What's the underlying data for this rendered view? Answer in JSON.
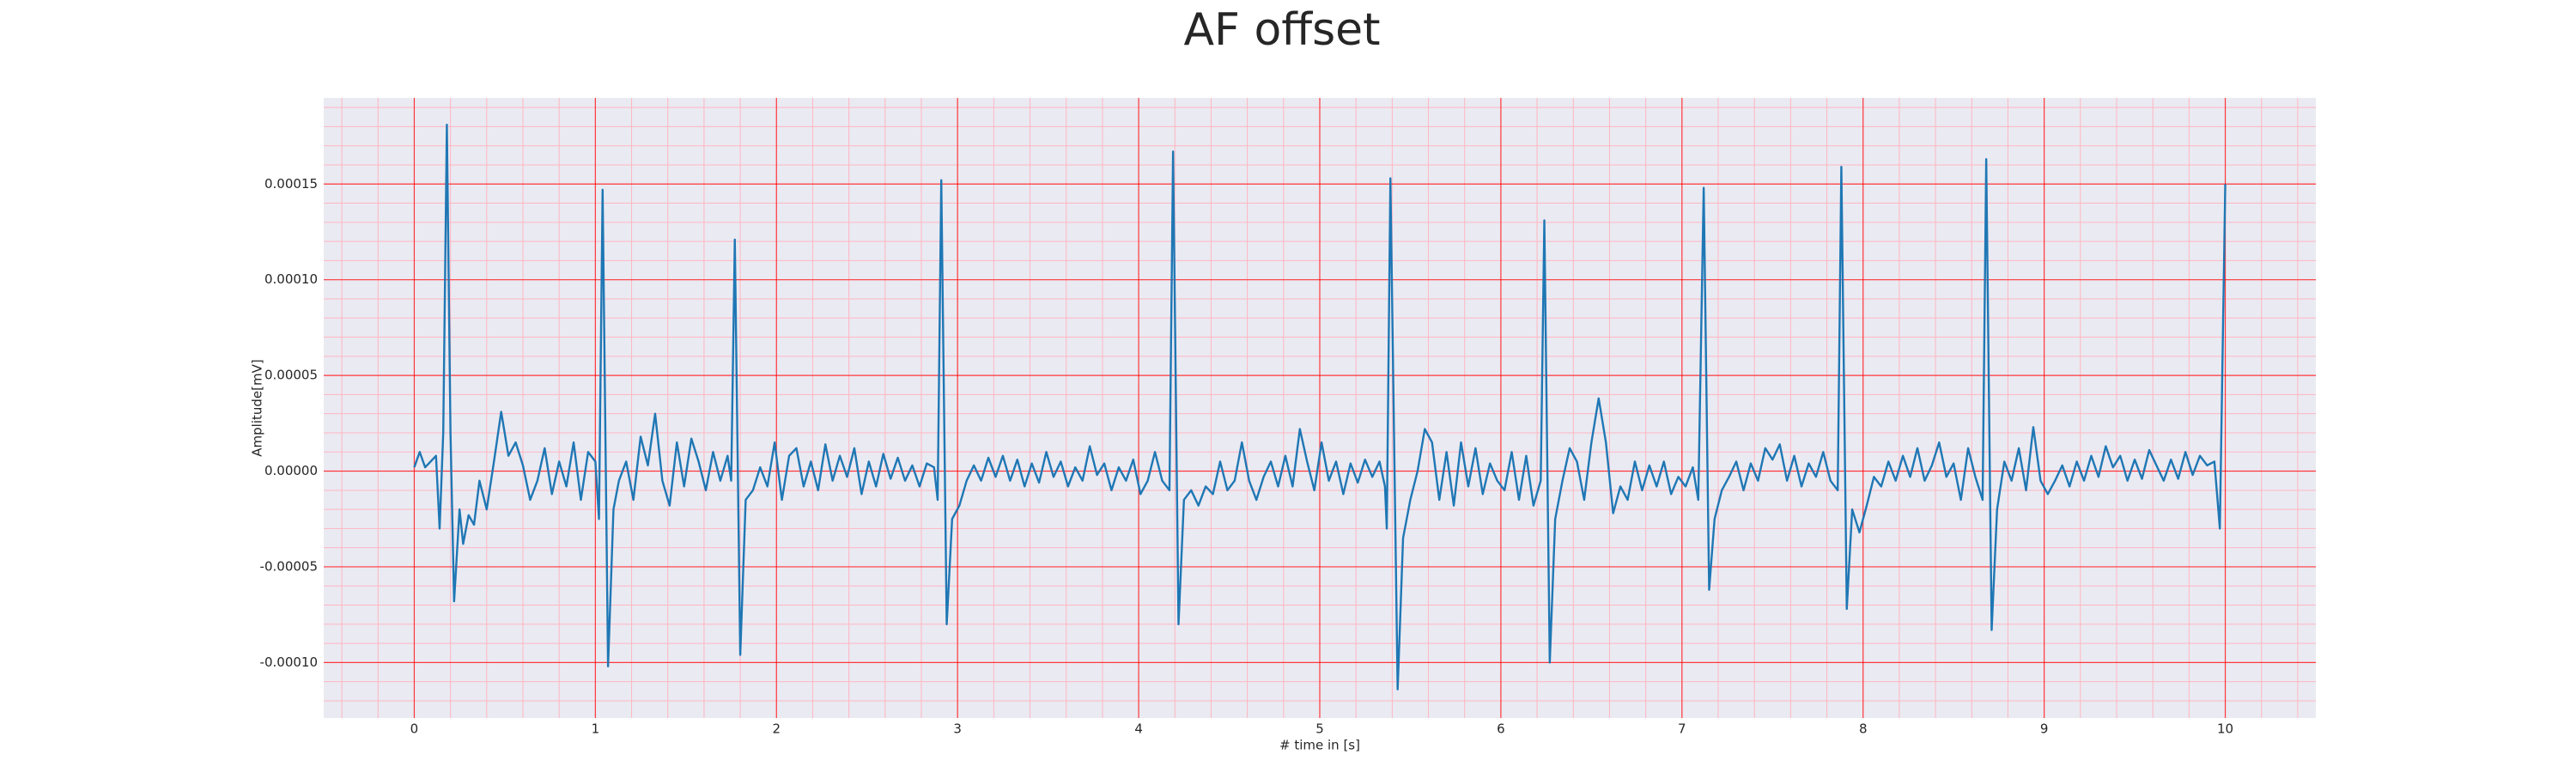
{
  "chart_data": {
    "type": "line",
    "title": "AF offset",
    "xlabel": "# time in [s]",
    "ylabel": "Amplitude[mV]",
    "color": "#1f77b4",
    "background": "#eaeaf2",
    "grid": true,
    "grid_color": "#ff0000",
    "minor_grid": true,
    "minor_grid_color": "#ffb6c1",
    "xlim": [
      -0.5,
      10.5
    ],
    "xticks": [
      0,
      1,
      2,
      3,
      4,
      5,
      6,
      7,
      8,
      9,
      10
    ],
    "ylim": [
      -0.000129,
      0.000195
    ],
    "yticks": [
      {
        "value": -0.0001,
        "label": "-0.00010"
      },
      -5e-05,
      {
        "value": 0,
        "label": "0.00000"
      },
      5e-05,
      {
        "value": 0.0001,
        "label": "0.00010"
      },
      0.00015
    ],
    "x": [
      0,
      0.03,
      0.06,
      0.09,
      0.12,
      0.14,
      0.16,
      0.18,
      0.2,
      0.22,
      0.25,
      0.27,
      0.3,
      0.33,
      0.36,
      0.4,
      0.44,
      0.48,
      0.52,
      0.56,
      0.6,
      0.64,
      0.68,
      0.72,
      0.76,
      0.8,
      0.84,
      0.88,
      0.92,
      0.96,
      1.0,
      1.02,
      1.04,
      1.07,
      1.1,
      1.13,
      1.17,
      1.21,
      1.25,
      1.29,
      1.33,
      1.37,
      1.41,
      1.45,
      1.49,
      1.53,
      1.57,
      1.61,
      1.65,
      1.69,
      1.73,
      1.75,
      1.77,
      1.8,
      1.83,
      1.87,
      1.91,
      1.95,
      1.99,
      2.03,
      2.07,
      2.11,
      2.15,
      2.19,
      2.23,
      2.27,
      2.31,
      2.35,
      2.39,
      2.43,
      2.47,
      2.51,
      2.55,
      2.59,
      2.63,
      2.67,
      2.71,
      2.75,
      2.79,
      2.83,
      2.87,
      2.89,
      2.91,
      2.94,
      2.97,
      3.01,
      3.05,
      3.09,
      3.13,
      3.17,
      3.21,
      3.25,
      3.29,
      3.33,
      3.37,
      3.41,
      3.45,
      3.49,
      3.53,
      3.57,
      3.61,
      3.65,
      3.69,
      3.73,
      3.77,
      3.81,
      3.85,
      3.89,
      3.93,
      3.97,
      4.01,
      4.05,
      4.09,
      4.13,
      4.17,
      4.19,
      4.22,
      4.25,
      4.29,
      4.33,
      4.37,
      4.41,
      4.45,
      4.49,
      4.53,
      4.57,
      4.61,
      4.65,
      4.69,
      4.73,
      4.77,
      4.81,
      4.85,
      4.89,
      4.93,
      4.97,
      5.01,
      5.05,
      5.09,
      5.13,
      5.17,
      5.21,
      5.25,
      5.29,
      5.33,
      5.36,
      5.37,
      5.39,
      5.43,
      5.46,
      5.5,
      5.54,
      5.58,
      5.62,
      5.66,
      5.7,
      5.74,
      5.78,
      5.82,
      5.86,
      5.9,
      5.94,
      5.98,
      6.02,
      6.06,
      6.1,
      6.14,
      6.18,
      6.22,
      6.24,
      6.27,
      6.3,
      6.34,
      6.38,
      6.42,
      6.46,
      6.5,
      6.54,
      6.58,
      6.62,
      6.66,
      6.7,
      6.74,
      6.78,
      6.82,
      6.86,
      6.9,
      6.94,
      6.98,
      7.02,
      7.06,
      7.09,
      7.12,
      7.15,
      7.18,
      7.22,
      7.26,
      7.3,
      7.34,
      7.38,
      7.42,
      7.46,
      7.5,
      7.54,
      7.58,
      7.62,
      7.66,
      7.7,
      7.74,
      7.78,
      7.82,
      7.86,
      7.88,
      7.91,
      7.94,
      7.98,
      8.02,
      8.06,
      8.1,
      8.14,
      8.18,
      8.22,
      8.26,
      8.3,
      8.34,
      8.38,
      8.42,
      8.46,
      8.5,
      8.54,
      8.58,
      8.62,
      8.66,
      8.68,
      8.71,
      8.74,
      8.78,
      8.82,
      8.86,
      8.9,
      8.94,
      8.98,
      9.02,
      9.06,
      9.1,
      9.14,
      9.18,
      9.22,
      9.26,
      9.3,
      9.34,
      9.38,
      9.42,
      9.46,
      9.5,
      9.54,
      9.58,
      9.62,
      9.66,
      9.7,
      9.74,
      9.78,
      9.82,
      9.86,
      9.9,
      9.94,
      9.97,
      10.0
    ],
    "values": [
      2e-06,
      1e-05,
      2e-06,
      5e-06,
      8e-06,
      -3e-05,
      2e-05,
      0.000181,
      2e-05,
      -6.8e-05,
      -2e-05,
      -3.8e-05,
      -2.3e-05,
      -2.8e-05,
      -5e-06,
      -2e-05,
      5e-06,
      3.1e-05,
      8e-06,
      1.5e-05,
      3e-06,
      -1.5e-05,
      -5e-06,
      1.2e-05,
      -1.2e-05,
      5e-06,
      -8e-06,
      1.5e-05,
      -1.5e-05,
      1e-05,
      5e-06,
      -2.5e-05,
      0.000147,
      -0.000102,
      -2e-05,
      -5e-06,
      5e-06,
      -1.5e-05,
      1.8e-05,
      3e-06,
      3e-05,
      -5e-06,
      -1.8e-05,
      1.5e-05,
      -8e-06,
      1.7e-05,
      5e-06,
      -1e-05,
      1e-05,
      -5e-06,
      8e-06,
      -5e-06,
      0.000121,
      -9.6e-05,
      -1.5e-05,
      -1e-05,
      2e-06,
      -8e-06,
      1.5e-05,
      -1.5e-05,
      8e-06,
      1.2e-05,
      -8e-06,
      5e-06,
      -1e-05,
      1.4e-05,
      -5e-06,
      8e-06,
      -3e-06,
      1.2e-05,
      -1.2e-05,
      5e-06,
      -8e-06,
      9e-06,
      -4e-06,
      7e-06,
      -5e-06,
      3e-06,
      -8e-06,
      4e-06,
      2e-06,
      -1.5e-05,
      0.000152,
      -8e-05,
      -2.5e-05,
      -1.8e-05,
      -5e-06,
      3e-06,
      -5e-06,
      7e-06,
      -3e-06,
      8e-06,
      -5e-06,
      6e-06,
      -8e-06,
      4e-06,
      -6e-06,
      1e-05,
      -3e-06,
      5e-06,
      -8e-06,
      2e-06,
      -5e-06,
      1.3e-05,
      -2e-06,
      4e-06,
      -1e-05,
      2e-06,
      -5e-06,
      6e-06,
      -1.2e-05,
      -5e-06,
      1e-05,
      -5e-06,
      -1e-05,
      0.000167,
      -8e-05,
      -1.5e-05,
      -1e-05,
      -1.8e-05,
      -8e-06,
      -1.2e-05,
      5e-06,
      -1e-05,
      -5e-06,
      1.5e-05,
      -5e-06,
      -1.5e-05,
      -3e-06,
      5e-06,
      -8e-06,
      8e-06,
      -8e-06,
      2.2e-05,
      5e-06,
      -1e-05,
      1.5e-05,
      -5e-06,
      5e-06,
      -1.2e-05,
      4e-06,
      -6e-06,
      6e-06,
      -3e-06,
      5e-06,
      -8e-06,
      -3e-05,
      0.000153,
      -0.000114,
      -3.5e-05,
      -1.5e-05,
      0,
      2.2e-05,
      1.5e-05,
      -1.5e-05,
      1e-05,
      -1.8e-05,
      1.5e-05,
      -8e-06,
      1.2e-05,
      -1.2e-05,
      4e-06,
      -5e-06,
      -1e-05,
      1e-05,
      -1.5e-05,
      8e-06,
      -1.8e-05,
      -5e-06,
      0.000131,
      -0.0001,
      -2.5e-05,
      -5e-06,
      1.2e-05,
      5e-06,
      -1.5e-05,
      1.5e-05,
      3.8e-05,
      1.5e-05,
      -2.2e-05,
      -8e-06,
      -1.5e-05,
      5e-06,
      -1e-05,
      3e-06,
      -8e-06,
      5e-06,
      -1.2e-05,
      -3e-06,
      -8e-06,
      2e-06,
      -1.5e-05,
      0.000148,
      -6.2e-05,
      -2.5e-05,
      -1e-05,
      -3e-06,
      5e-06,
      -1e-05,
      4e-06,
      -5e-06,
      1.2e-05,
      6e-06,
      1.4e-05,
      -5e-06,
      8e-06,
      -8e-06,
      4e-06,
      -3e-06,
      1e-05,
      -5e-06,
      -1e-05,
      0.000159,
      -7.2e-05,
      -2e-05,
      -3.2e-05,
      -1.8e-05,
      -3e-06,
      -8e-06,
      5e-06,
      -5e-06,
      8e-06,
      -3e-06,
      1.2e-05,
      -5e-06,
      3e-06,
      1.5e-05,
      -3e-06,
      4e-06,
      -1.5e-05,
      1.2e-05,
      -3e-06,
      -1.5e-05,
      0.000163,
      -8.3e-05,
      -2e-05,
      5e-06,
      -5e-06,
      1.2e-05,
      -1e-05,
      2.3e-05,
      -5e-06,
      -1.2e-05,
      -5e-06,
      3e-06,
      -8e-06,
      5e-06,
      -5e-06,
      8e-06,
      -3e-06,
      1.3e-05,
      2e-06,
      8e-06,
      -5e-06,
      6e-06,
      -4e-06,
      1.1e-05,
      3e-06,
      -5e-06,
      6e-06,
      -4e-06,
      1e-05,
      -2e-06,
      8e-06,
      3e-06,
      5e-06,
      -3e-05,
      0.00015
    ]
  }
}
